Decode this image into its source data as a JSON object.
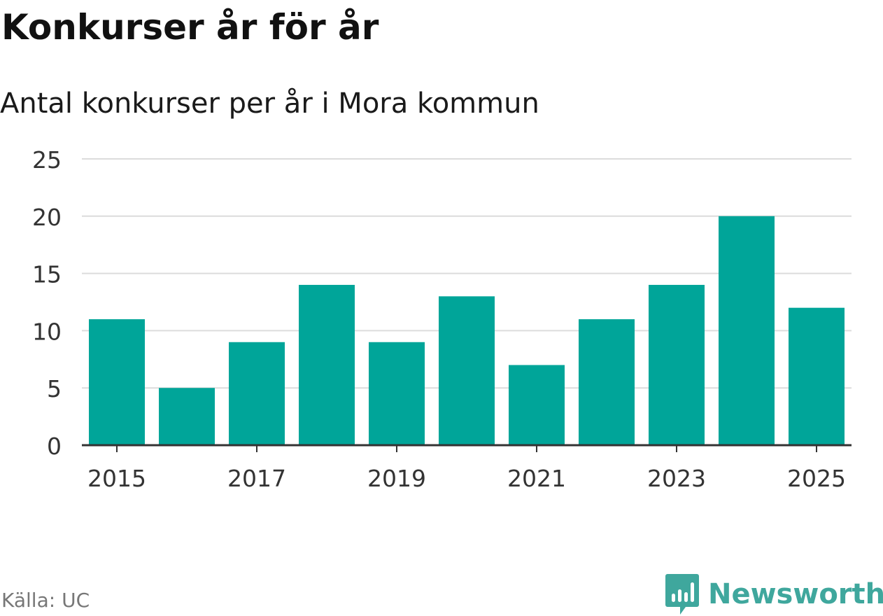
{
  "title": "Konkurser år för år",
  "subtitle": "Antal konkurser per år i Mora kommun",
  "source": "Källa: UC",
  "brand": {
    "name": "Newsworthy",
    "color": "#3fa79d",
    "icon": "newsworthy-logo-icon"
  },
  "colors": {
    "bar": "#00a599",
    "grid": "#dcdcdc",
    "axis": "#333333",
    "text": "#333333"
  },
  "chart_data": {
    "type": "bar",
    "title": "Konkurser år för år",
    "subtitle": "Antal konkurser per år i Mora kommun",
    "xlabel": "",
    "ylabel": "",
    "categories": [
      2015,
      2016,
      2017,
      2018,
      2019,
      2020,
      2021,
      2022,
      2023,
      2024,
      2025
    ],
    "values": [
      11,
      5,
      9,
      14,
      9,
      13,
      7,
      11,
      14,
      20,
      12
    ],
    "x_tick_labels": [
      "2015",
      "2017",
      "2019",
      "2021",
      "2023",
      "2025"
    ],
    "y_ticks": [
      0,
      5,
      10,
      15,
      20,
      25
    ],
    "ylim": [
      0,
      25
    ],
    "grid": true,
    "legend": "none"
  }
}
